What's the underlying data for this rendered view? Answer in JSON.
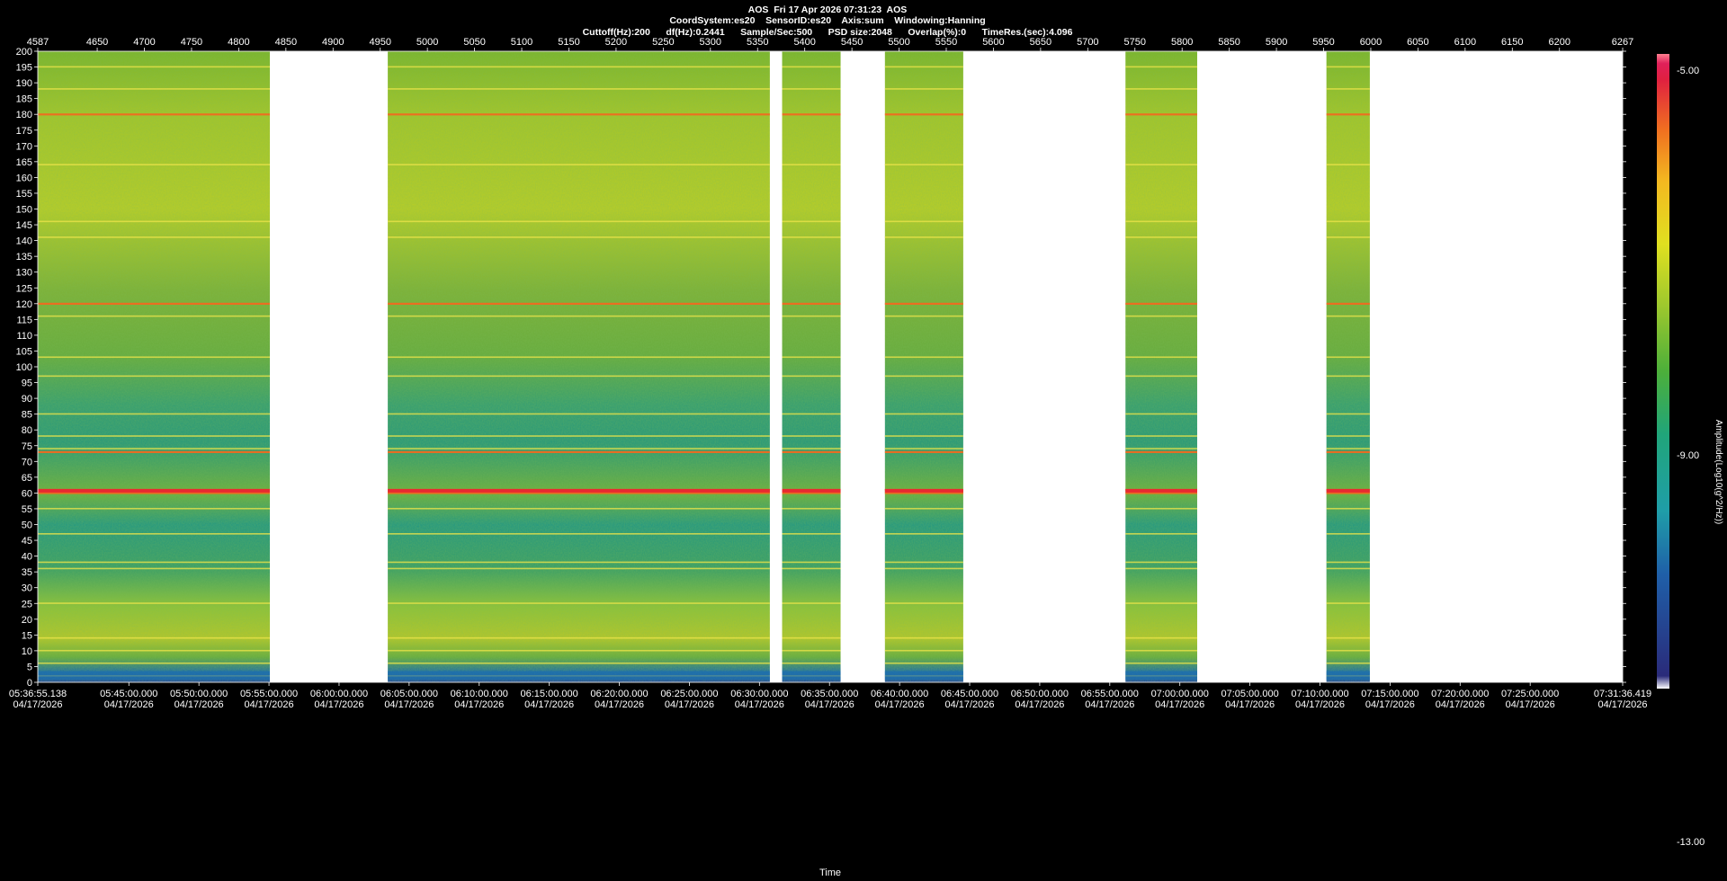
{
  "header": {
    "line1": "AOS  Fri 17 Apr 2026 07:31:23  AOS",
    "line2": "CoordSystem:es20    SensorID:es20    Axis:sum    Windowing:Hanning",
    "line3": "Cuttoff(Hz):200      df(Hz):0.2441      Sample/Sec:500      PSD size:2048      Overlap(%):0      TimeRes.(sec):4.096"
  },
  "chart_data": {
    "type": "heatmap",
    "title": "AOS  Fri 17 Apr 2026 07:31:23  AOS",
    "xlabel": "Time",
    "ylabel": "",
    "colorbar_label": "Amplitude(Log10(g^2/Hz))",
    "top_axis": {
      "range": [
        4587,
        6267
      ],
      "ticks": [
        "4587",
        "4650",
        "4700",
        "4750",
        "4800",
        "4850",
        "4900",
        "4950",
        "5000",
        "5050",
        "5100",
        "5150",
        "5200",
        "5250",
        "5300",
        "5350",
        "5400",
        "5450",
        "5500",
        "5550",
        "5600",
        "5650",
        "5700",
        "5750",
        "5800",
        "5850",
        "5900",
        "5950",
        "6000",
        "6050",
        "6100",
        "6150",
        "6200",
        "6267"
      ]
    },
    "y_axis": {
      "range": [
        0,
        200
      ],
      "ticks": [
        "0",
        "5",
        "10",
        "15",
        "20",
        "25",
        "30",
        "35",
        "40",
        "45",
        "50",
        "55",
        "60",
        "65",
        "70",
        "75",
        "80",
        "85",
        "90",
        "95",
        "100",
        "105",
        "110",
        "115",
        "120",
        "125",
        "130",
        "135",
        "140",
        "145",
        "150",
        "155",
        "160",
        "165",
        "170",
        "175",
        "180",
        "185",
        "190",
        "195",
        "200"
      ]
    },
    "bottom_axis": {
      "times": [
        "05:36:55.138",
        "05:45:00.000",
        "05:50:00.000",
        "05:55:00.000",
        "06:00:00.000",
        "06:05:00.000",
        "06:10:00.000",
        "06:15:00.000",
        "06:20:00.000",
        "06:25:00.000",
        "06:30:00.000",
        "06:35:00.000",
        "06:40:00.000",
        "06:45:00.000",
        "06:50:00.000",
        "06:55:00.000",
        "07:00:00.000",
        "07:05:00.000",
        "07:10:00.000",
        "07:15:00.000",
        "07:20:00.000",
        "07:25:00.000",
        "07:31:36.419"
      ],
      "date": "04/17/2026"
    },
    "colorbar": {
      "max": "-5.00",
      "mid": "-9.00",
      "min": "-13.00",
      "colors": [
        "#ffffff",
        "#2a2b7a",
        "#1f5fa8",
        "#1f9ea8",
        "#20a57a",
        "#4caf3a",
        "#9bc72e",
        "#e0e020",
        "#f3b820",
        "#f07020",
        "#e02040",
        "#e0205a",
        "#ff8090"
      ]
    },
    "data_segments": [
      [
        4587,
        4833
      ],
      [
        4958,
        5363
      ],
      [
        5376,
        5438
      ],
      [
        5485,
        5568
      ],
      [
        5740,
        5816
      ],
      [
        5953,
        5999
      ]
    ],
    "bright_lines_hz": [
      2,
      6,
      10,
      14,
      25,
      36,
      38,
      47,
      55,
      60,
      61,
      73,
      74,
      78,
      85,
      97,
      103,
      116,
      120,
      141,
      146,
      164,
      180,
      188,
      195
    ],
    "strong_lines_hz": [
      60,
      61,
      73,
      180,
      120
    ]
  }
}
